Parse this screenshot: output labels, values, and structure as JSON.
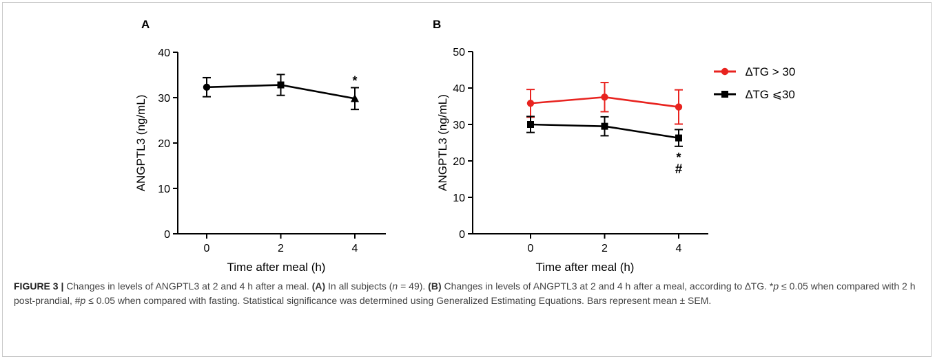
{
  "chart_data": [
    {
      "panel_label": "A",
      "type": "line",
      "x": [
        0,
        2,
        4
      ],
      "xticks": [
        "0",
        "2",
        "4"
      ],
      "xlim": [
        -1,
        5
      ],
      "ylim": [
        0,
        40
      ],
      "yticks": [
        "0",
        "10",
        "20",
        "30",
        "40"
      ],
      "xlabel": "Time after meal (h)",
      "ylabel": "ANGPTL3 (ng/mL)",
      "grid": false,
      "series": [
        {
          "values": [
            32.3,
            32.8,
            29.8
          ],
          "errors": [
            2.1,
            2.3,
            2.4
          ],
          "markers": [
            "circle",
            "square",
            "triangle"
          ],
          "color": "#000000"
        }
      ],
      "annotations": [
        {
          "x": 4,
          "text": "*"
        }
      ]
    },
    {
      "panel_label": "B",
      "type": "line",
      "x": [
        0,
        2,
        4
      ],
      "xticks": [
        "0",
        "2",
        "4"
      ],
      "xlim": [
        -1,
        5
      ],
      "ylim": [
        0,
        50
      ],
      "yticks": [
        "0",
        "10",
        "20",
        "30",
        "40",
        "50"
      ],
      "xlabel": "Time after meal (h)",
      "ylabel": "ANGPTL3 (ng/mL)",
      "grid": false,
      "legend_position": "top-right",
      "series": [
        {
          "name": "∆TG > 30",
          "values": [
            35.8,
            37.5,
            34.8
          ],
          "errors": [
            3.8,
            4.0,
            4.7
          ],
          "marker": "circle",
          "color": "#e8231f"
        },
        {
          "name": "∆TG ⩽30",
          "values": [
            30.0,
            29.5,
            26.3
          ],
          "errors": [
            2.2,
            2.6,
            2.3
          ],
          "marker": "square",
          "color": "#000000"
        }
      ],
      "annotations": [
        {
          "x": 4,
          "text": "*"
        },
        {
          "x": 4,
          "text": "#"
        }
      ]
    }
  ],
  "caption": {
    "lead": "FIGURE 3 |",
    "s1": " Changes in levels of ANGPTL3 at 2 and 4 h after a meal. ",
    "a_label": "(A)",
    "s2": " In all subjects (",
    "n_var": "n",
    "s3": " = 49). ",
    "b_label": "(B)",
    "s4": " Changes in levels of ANGPTL3 at 2 and 4 h after a meal, according to ∆TG. *",
    "p1": "p",
    "s5": " ≤ 0.05 when compared with 2 h post-prandial, #",
    "p2": "p",
    "s6": " ≤ 0.05 when compared with fasting. Statistical significance was determined using Generalized Estimating Equations. Bars represent mean ± SEM."
  }
}
